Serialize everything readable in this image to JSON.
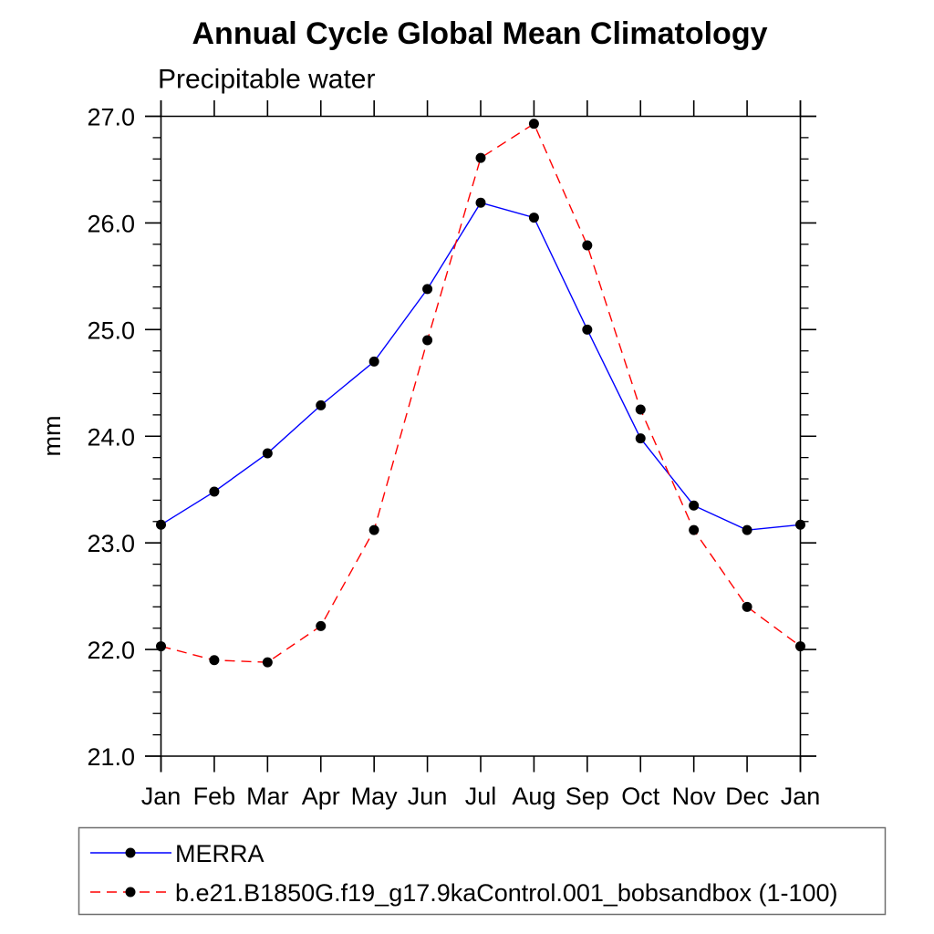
{
  "chart_data": {
    "type": "line",
    "title": "Annual Cycle Global Mean Climatology",
    "subtitle": "Precipitable water",
    "ylabel": "mm",
    "categories": [
      "Jan",
      "Feb",
      "Mar",
      "Apr",
      "May",
      "Jun",
      "Jul",
      "Aug",
      "Sep",
      "Oct",
      "Nov",
      "Dec",
      "Jan"
    ],
    "ylim": [
      21.0,
      27.0
    ],
    "ytick_values": [
      21,
      22,
      23,
      24,
      25,
      26,
      27
    ],
    "ytick_labels": [
      "21.0",
      "22.0",
      "23.0",
      "24.0",
      "25.0",
      "26.0",
      "27.0"
    ],
    "ytick_minor_step": 0.2,
    "grid": false,
    "legend_position": "below-plot-left",
    "axis_color": "#000000",
    "series": [
      {
        "name": "MERRA",
        "line_color": "#0000ff",
        "line_style": "solid",
        "marker": "filled-circle",
        "marker_color": "#000000",
        "values": [
          23.17,
          23.48,
          23.84,
          24.29,
          24.7,
          25.38,
          26.19,
          26.05,
          25.0,
          23.98,
          23.35,
          23.12,
          23.17
        ]
      },
      {
        "name": "b.e21.B1850G.f19_g17.9kaControl.001_bobsandbox (1-100)",
        "line_color": "#ff0000",
        "line_style": "dashed",
        "marker": "filled-circle",
        "marker_color": "#000000",
        "values": [
          22.03,
          21.9,
          21.88,
          22.22,
          23.12,
          24.9,
          26.61,
          26.93,
          25.79,
          24.25,
          23.12,
          22.4,
          22.03
        ]
      }
    ]
  }
}
